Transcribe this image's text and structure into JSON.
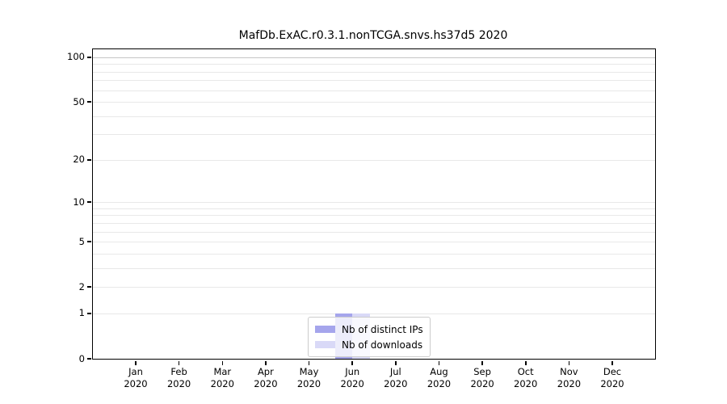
{
  "chart_data": {
    "type": "bar",
    "title": "MafDb.ExAC.r0.3.1.nonTCGA.snvs.hs37d5 2020",
    "categories": [
      "Jan 2020",
      "Feb 2020",
      "Mar 2020",
      "Apr 2020",
      "May 2020",
      "Jun 2020",
      "Jul 2020",
      "Aug 2020",
      "Sep 2020",
      "Oct 2020",
      "Nov 2020",
      "Dec 2020"
    ],
    "series": [
      {
        "name": "Nb of distinct IPs",
        "color": "#a5a5ec",
        "values": [
          0,
          0,
          0,
          0,
          0,
          1,
          0,
          0,
          0,
          0,
          0,
          0
        ]
      },
      {
        "name": "Nb of downloads",
        "color": "#d9d9f7",
        "values": [
          0,
          0,
          0,
          0,
          0,
          1,
          0,
          0,
          0,
          0,
          0,
          0
        ]
      }
    ],
    "yscale": "log1p",
    "ylim": [
      0,
      113
    ],
    "ytick_values": [
      0,
      1,
      2,
      5,
      10,
      20,
      50,
      100
    ],
    "grid_values": [
      1,
      2,
      3,
      4,
      5,
      6,
      7,
      8,
      9,
      10,
      20,
      30,
      40,
      50,
      60,
      70,
      80,
      90,
      100
    ],
    "grid_major_value": 100,
    "grid": true,
    "legend_position": "lower center",
    "colors": {
      "grid_minor": "#e8e8e8",
      "grid_major": "#c6c6c6",
      "axis": "#000000",
      "background": "#ffffff"
    }
  }
}
